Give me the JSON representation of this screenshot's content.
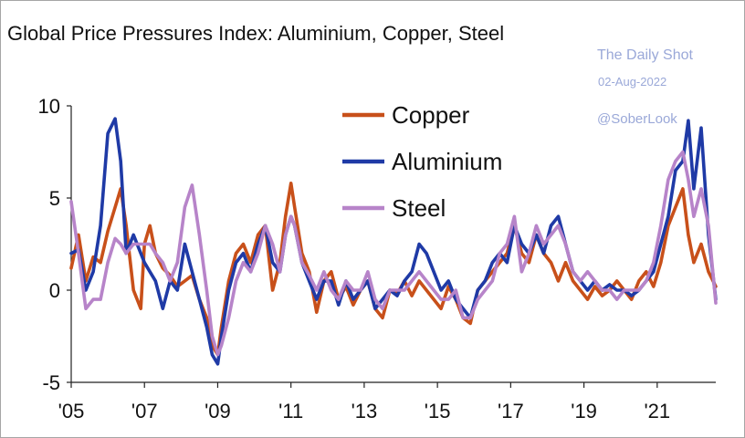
{
  "chart_data": {
    "type": "line",
    "title": "Global Price Pressures Index: Aluminium, Copper, Steel",
    "xlabel": "",
    "ylabel": "",
    "ylim": [
      -5,
      10
    ],
    "yticks": [
      10,
      5,
      0,
      -5
    ],
    "xlim": [
      2005,
      2022.6
    ],
    "xticks": [
      {
        "label": "'05",
        "value": 2005
      },
      {
        "label": "'07",
        "value": 2007
      },
      {
        "label": "'09",
        "value": 2009
      },
      {
        "label": "'11",
        "value": 2011
      },
      {
        "label": "'13",
        "value": 2013
      },
      {
        "label": "'15",
        "value": 2015
      },
      {
        "label": "'17",
        "value": 2017
      },
      {
        "label": "'19",
        "value": 2019
      },
      {
        "label": "'21",
        "value": 2021
      }
    ],
    "grid": false,
    "legend_position": "top-center",
    "series": [
      {
        "name": "Copper",
        "color": "#c8501a",
        "x": [
          2005.0,
          2005.2,
          2005.4,
          2005.6,
          2005.8,
          2006.0,
          2006.2,
          2006.35,
          2006.5,
          2006.7,
          2006.9,
          2007.0,
          2007.15,
          2007.3,
          2007.5,
          2007.7,
          2007.9,
          2008.1,
          2008.3,
          2008.5,
          2008.7,
          2008.85,
          2009.0,
          2009.1,
          2009.3,
          2009.5,
          2009.7,
          2009.9,
          2010.1,
          2010.3,
          2010.5,
          2010.7,
          2010.85,
          2011.0,
          2011.1,
          2011.3,
          2011.5,
          2011.7,
          2011.9,
          2012.1,
          2012.3,
          2012.5,
          2012.7,
          2012.9,
          2013.1,
          2013.3,
          2013.5,
          2013.7,
          2013.9,
          2014.1,
          2014.3,
          2014.5,
          2014.7,
          2014.9,
          2015.1,
          2015.3,
          2015.5,
          2015.7,
          2015.9,
          2016.1,
          2016.3,
          2016.5,
          2016.7,
          2016.9,
          2017.1,
          2017.3,
          2017.5,
          2017.7,
          2017.9,
          2018.1,
          2018.3,
          2018.5,
          2018.7,
          2018.9,
          2019.1,
          2019.3,
          2019.5,
          2019.7,
          2019.9,
          2020.1,
          2020.3,
          2020.5,
          2020.7,
          2020.9,
          2021.1,
          2021.3,
          2021.5,
          2021.7,
          2021.85,
          2022.0,
          2022.2,
          2022.4,
          2022.6
        ],
        "values": [
          1.2,
          3.0,
          0.5,
          1.8,
          1.5,
          3.2,
          4.5,
          5.5,
          3.5,
          0.0,
          -1.0,
          2.5,
          3.5,
          2.0,
          1.2,
          0.8,
          0.2,
          0.5,
          0.8,
          -0.5,
          -1.5,
          -3.0,
          -3.5,
          -2.0,
          0.5,
          2.0,
          2.5,
          1.5,
          3.0,
          3.5,
          0.0,
          1.5,
          4.0,
          5.8,
          4.5,
          2.0,
          1.0,
          -1.2,
          0.5,
          1.0,
          -0.5,
          0.2,
          -0.8,
          0.0,
          0.5,
          -1.0,
          -1.5,
          0.0,
          -0.2,
          0.5,
          -0.3,
          0.5,
          0.0,
          -0.5,
          -1.0,
          0.2,
          -0.5,
          -1.5,
          -1.8,
          0.0,
          0.5,
          1.0,
          1.5,
          2.0,
          3.5,
          2.0,
          1.5,
          3.0,
          2.0,
          1.5,
          0.5,
          1.5,
          0.5,
          0.0,
          -0.5,
          0.2,
          -0.3,
          0.0,
          0.5,
          0.0,
          -0.5,
          0.5,
          1.0,
          0.2,
          1.5,
          3.5,
          4.5,
          5.5,
          3.0,
          1.5,
          2.5,
          1.0,
          0.2
        ]
      },
      {
        "name": "Aluminium",
        "color": "#1f3aa6",
        "x": [
          2005.0,
          2005.2,
          2005.4,
          2005.6,
          2005.8,
          2006.0,
          2006.2,
          2006.35,
          2006.5,
          2006.7,
          2006.9,
          2007.0,
          2007.15,
          2007.3,
          2007.5,
          2007.7,
          2007.9,
          2008.1,
          2008.3,
          2008.5,
          2008.7,
          2008.85,
          2009.0,
          2009.1,
          2009.3,
          2009.5,
          2009.7,
          2009.9,
          2010.1,
          2010.3,
          2010.5,
          2010.7,
          2010.85,
          2011.0,
          2011.1,
          2011.3,
          2011.5,
          2011.7,
          2011.9,
          2012.1,
          2012.3,
          2012.5,
          2012.7,
          2012.9,
          2013.1,
          2013.3,
          2013.5,
          2013.7,
          2013.9,
          2014.1,
          2014.3,
          2014.5,
          2014.7,
          2014.9,
          2015.1,
          2015.3,
          2015.5,
          2015.7,
          2015.9,
          2016.1,
          2016.3,
          2016.5,
          2016.7,
          2016.9,
          2017.1,
          2017.3,
          2017.5,
          2017.7,
          2017.9,
          2018.1,
          2018.3,
          2018.5,
          2018.7,
          2018.9,
          2019.1,
          2019.3,
          2019.5,
          2019.7,
          2019.9,
          2020.1,
          2020.3,
          2020.5,
          2020.7,
          2020.9,
          2021.1,
          2021.3,
          2021.5,
          2021.7,
          2021.85,
          2022.0,
          2022.2,
          2022.4,
          2022.6
        ],
        "values": [
          2.0,
          2.2,
          0.0,
          1.0,
          3.5,
          8.5,
          9.3,
          7.0,
          2.0,
          3.0,
          2.0,
          1.5,
          1.0,
          0.5,
          -1.0,
          0.5,
          0.0,
          2.5,
          1.0,
          -0.5,
          -2.0,
          -3.5,
          -4.0,
          -2.5,
          0.0,
          1.5,
          2.0,
          1.0,
          2.5,
          3.5,
          1.5,
          1.0,
          3.0,
          4.0,
          3.5,
          1.5,
          0.5,
          -0.5,
          0.5,
          0.5,
          -0.8,
          0.5,
          -0.5,
          0.0,
          0.5,
          -1.0,
          -0.5,
          0.0,
          -0.3,
          0.5,
          1.0,
          2.5,
          2.0,
          1.0,
          0.0,
          0.5,
          -0.5,
          -1.0,
          -1.5,
          0.0,
          0.5,
          1.5,
          2.0,
          1.5,
          3.5,
          2.5,
          2.0,
          3.0,
          2.0,
          3.5,
          4.0,
          2.5,
          1.0,
          0.5,
          0.0,
          0.5,
          0.0,
          0.3,
          0.0,
          0.0,
          -0.3,
          0.0,
          0.5,
          1.0,
          2.5,
          4.0,
          6.5,
          7.0,
          9.2,
          5.5,
          8.8,
          3.0,
          -0.5
        ]
      },
      {
        "name": "Steel",
        "color": "#b784c9",
        "x": [
          2005.0,
          2005.2,
          2005.4,
          2005.6,
          2005.8,
          2006.0,
          2006.2,
          2006.35,
          2006.5,
          2006.7,
          2006.9,
          2007.0,
          2007.15,
          2007.3,
          2007.5,
          2007.7,
          2007.9,
          2008.1,
          2008.3,
          2008.5,
          2008.7,
          2008.85,
          2009.0,
          2009.1,
          2009.3,
          2009.5,
          2009.7,
          2009.9,
          2010.1,
          2010.3,
          2010.5,
          2010.7,
          2010.85,
          2011.0,
          2011.1,
          2011.3,
          2011.5,
          2011.7,
          2011.9,
          2012.1,
          2012.3,
          2012.5,
          2012.7,
          2012.9,
          2013.1,
          2013.3,
          2013.5,
          2013.7,
          2013.9,
          2014.1,
          2014.3,
          2014.5,
          2014.7,
          2014.9,
          2015.1,
          2015.3,
          2015.5,
          2015.7,
          2015.9,
          2016.1,
          2016.3,
          2016.5,
          2016.7,
          2016.9,
          2017.1,
          2017.3,
          2017.5,
          2017.7,
          2017.9,
          2018.1,
          2018.3,
          2018.5,
          2018.7,
          2018.9,
          2019.1,
          2019.3,
          2019.5,
          2019.7,
          2019.9,
          2020.1,
          2020.3,
          2020.5,
          2020.7,
          2020.9,
          2021.1,
          2021.3,
          2021.5,
          2021.7,
          2021.85,
          2022.0,
          2022.2,
          2022.4,
          2022.6
        ],
        "values": [
          4.8,
          2.0,
          -1.0,
          -0.5,
          -0.5,
          1.5,
          2.8,
          2.5,
          2.0,
          2.5,
          2.5,
          2.5,
          2.5,
          2.0,
          1.5,
          0.5,
          1.5,
          4.5,
          5.7,
          3.0,
          0.0,
          -2.5,
          -3.5,
          -3.0,
          -1.5,
          0.5,
          1.5,
          1.0,
          2.0,
          3.5,
          2.5,
          1.0,
          3.0,
          4.0,
          3.5,
          1.5,
          0.8,
          0.0,
          1.0,
          0.0,
          -0.5,
          0.5,
          0.0,
          0.0,
          1.0,
          -0.5,
          -1.0,
          0.0,
          0.0,
          0.0,
          0.5,
          1.0,
          0.5,
          0.0,
          -0.5,
          -0.5,
          0.0,
          -1.5,
          -1.5,
          -0.5,
          0.0,
          0.5,
          2.0,
          2.5,
          4.0,
          1.0,
          2.0,
          3.5,
          2.5,
          3.0,
          3.5,
          2.5,
          1.0,
          0.5,
          1.0,
          0.5,
          0.0,
          0.0,
          -0.5,
          0.0,
          0.0,
          0.0,
          0.5,
          1.5,
          3.5,
          6.0,
          7.0,
          7.5,
          6.0,
          4.0,
          5.5,
          3.5,
          -0.7
        ]
      }
    ]
  },
  "watermark": {
    "source": "The Daily Shot",
    "date": "02-Aug-2022",
    "handle": "@SoberLook"
  }
}
